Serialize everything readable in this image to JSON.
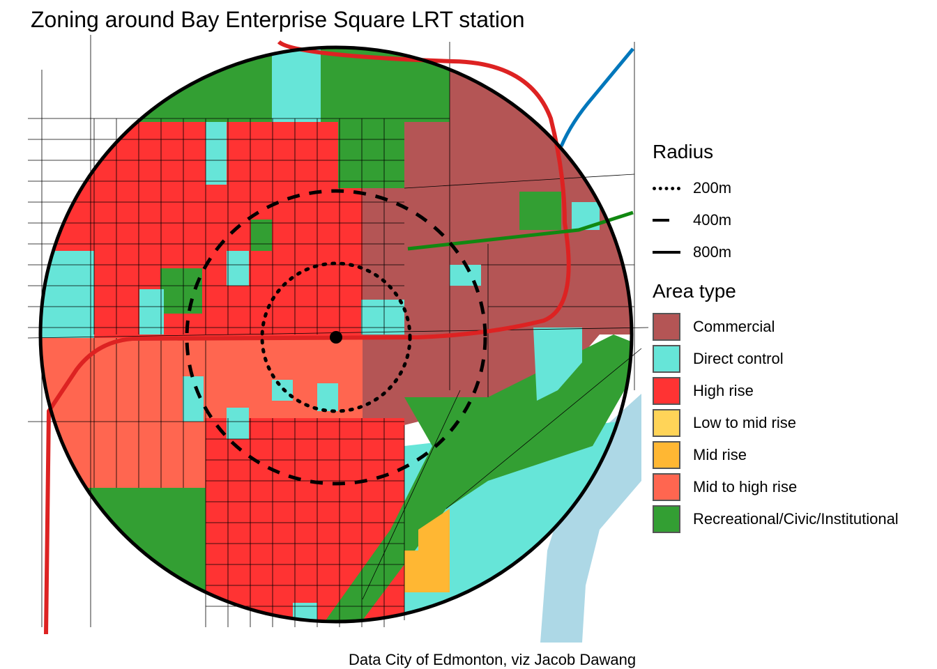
{
  "title": "Zoning around Bay Enterprise Square LRT station",
  "caption": "Data City of Edmonton, viz Jacob Dawang",
  "legend": {
    "radius_title": "Radius",
    "radius_items": [
      {
        "label": "200m",
        "style": "dotted"
      },
      {
        "label": "400m",
        "style": "dashed"
      },
      {
        "label": "800m",
        "style": "solid"
      }
    ],
    "area_title": "Area type",
    "area_items": [
      {
        "label": "Commercial",
        "color": "#B45555"
      },
      {
        "label": "Direct control",
        "color": "#66E5D8"
      },
      {
        "label": "High rise",
        "color": "#FF3333"
      },
      {
        "label": "Low to mid rise",
        "color": "#FFD458"
      },
      {
        "label": "Mid rise",
        "color": "#FFB733"
      },
      {
        "label": "Mid to high rise",
        "color": "#FF6650"
      },
      {
        "label": "Recreational/Civic/Institutional",
        "color": "#339F33"
      }
    ]
  },
  "map_colors": {
    "river": "#ADD8E6",
    "lrt_line": "#DD2222",
    "blue_line": "#0077BB",
    "green_line": "#118811"
  }
}
